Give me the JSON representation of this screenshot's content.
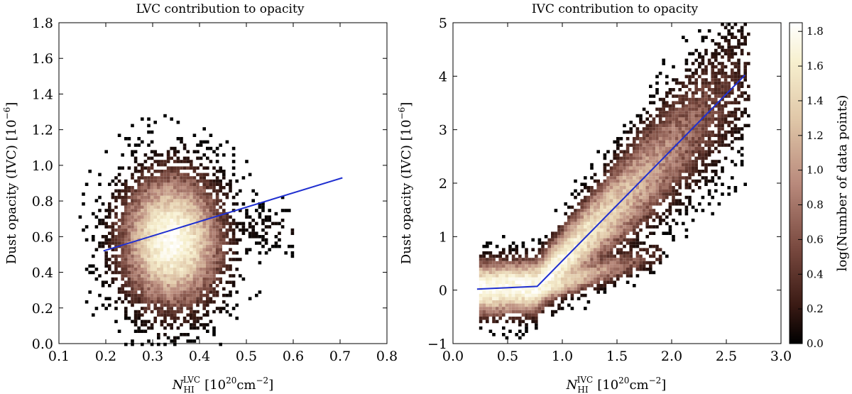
{
  "figure": {
    "colormap": [
      "#000000",
      "#3a1a14",
      "#7a4a40",
      "#b98a7c",
      "#e0c7a8",
      "#f7f0cf",
      "#ffffff"
    ]
  },
  "chart_data": [
    {
      "type": "heatmap",
      "title": "LVC contribution to opacity",
      "xlabel_main": "N",
      "xlabel_sub": "HI",
      "xlabel_sup": "LVC",
      "xlabel_units": "[10",
      "xlabel_units_exp": "20",
      "xlabel_units_tail": "cm",
      "xlabel_units_exp2": "−2",
      "xlabel_units_end": "]",
      "ylabel": "Dust opacity (IVC) [10",
      "ylabel_exp": "−6",
      "ylabel_end": "]",
      "xlim": [
        0.1,
        0.8
      ],
      "ylim": [
        0.0,
        1.8
      ],
      "xticks": [
        "0.1",
        "0.2",
        "0.3",
        "0.4",
        "0.5",
        "0.6",
        "0.7",
        "0.8"
      ],
      "yticks": [
        "0.0",
        "0.2",
        "0.4",
        "0.6",
        "0.8",
        "1.0",
        "1.2",
        "1.4",
        "1.6",
        "1.8"
      ],
      "density_core": {
        "x_center": 0.34,
        "y_center": 0.58,
        "x_extent": [
          0.19,
          0.5
        ],
        "y_extent": [
          0.08,
          1.3
        ]
      },
      "fit_line": {
        "x": [
          0.195,
          0.705
        ],
        "y": [
          0.52,
          0.93
        ]
      },
      "line_color": "#1f2fd0"
    },
    {
      "type": "heatmap",
      "title": "IVC contribution to opacity",
      "xlabel_main": "N",
      "xlabel_sub": "HI",
      "xlabel_sup": "IVC",
      "xlabel_units": "[10",
      "xlabel_units_exp": "20",
      "xlabel_units_tail": "cm",
      "xlabel_units_exp2": "−2",
      "xlabel_units_end": "]",
      "ylabel": "Dust opacity (IVC) [10",
      "ylabel_exp": "−6",
      "ylabel_end": "]",
      "xlim": [
        0.0,
        3.0
      ],
      "ylim": [
        -1.0,
        5.0
      ],
      "xticks": [
        "0.0",
        "0.5",
        "1.0",
        "1.5",
        "2.0",
        "2.5",
        "3.0"
      ],
      "yticks": [
        "−1",
        "0",
        "1",
        "2",
        "3",
        "4",
        "5"
      ],
      "fit_line": {
        "x": [
          0.22,
          0.77,
          2.67
        ],
        "y": [
          0.02,
          0.07,
          4.02
        ]
      },
      "line_color": "#1f2fd0"
    }
  ],
  "colorbar": {
    "label": "log(Number of data points)",
    "range": [
      0.0,
      1.85
    ],
    "ticks": [
      "0.0",
      "0.2",
      "0.4",
      "0.6",
      "0.8",
      "1.0",
      "1.2",
      "1.4",
      "1.6",
      "1.8"
    ]
  }
}
